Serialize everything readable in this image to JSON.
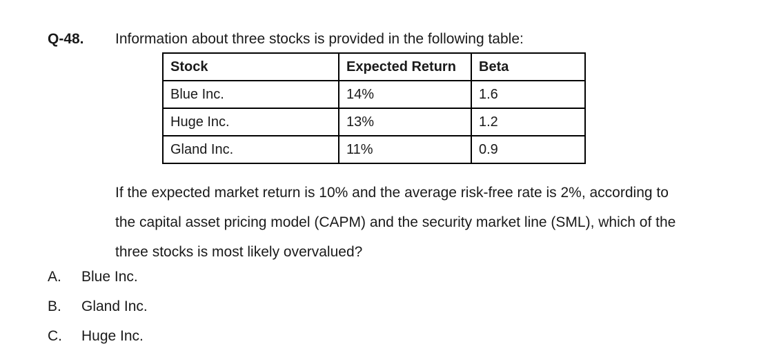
{
  "question": {
    "number": "Q-48.",
    "intro": "Information about three stocks is provided in the following table:",
    "table": {
      "headers": [
        "Stock",
        "Expected Return",
        "Beta"
      ],
      "rows": [
        [
          "Blue Inc.",
          "14%",
          "1.6"
        ],
        [
          "Huge Inc.",
          "13%",
          "1.2"
        ],
        [
          "Gland Inc.",
          "11%",
          "0.9"
        ]
      ]
    },
    "body_lines": [
      "If the expected market return is 10% and the average risk-free rate is 2%, according to",
      "the capital asset pricing model (CAPM) and the security market line (SML), which of the",
      "three stocks is most likely overvalued?"
    ],
    "options": [
      {
        "letter": "A.",
        "text": "Blue Inc."
      },
      {
        "letter": "B.",
        "text": "Gland Inc."
      },
      {
        "letter": "C.",
        "text": "Huge Inc."
      }
    ]
  }
}
